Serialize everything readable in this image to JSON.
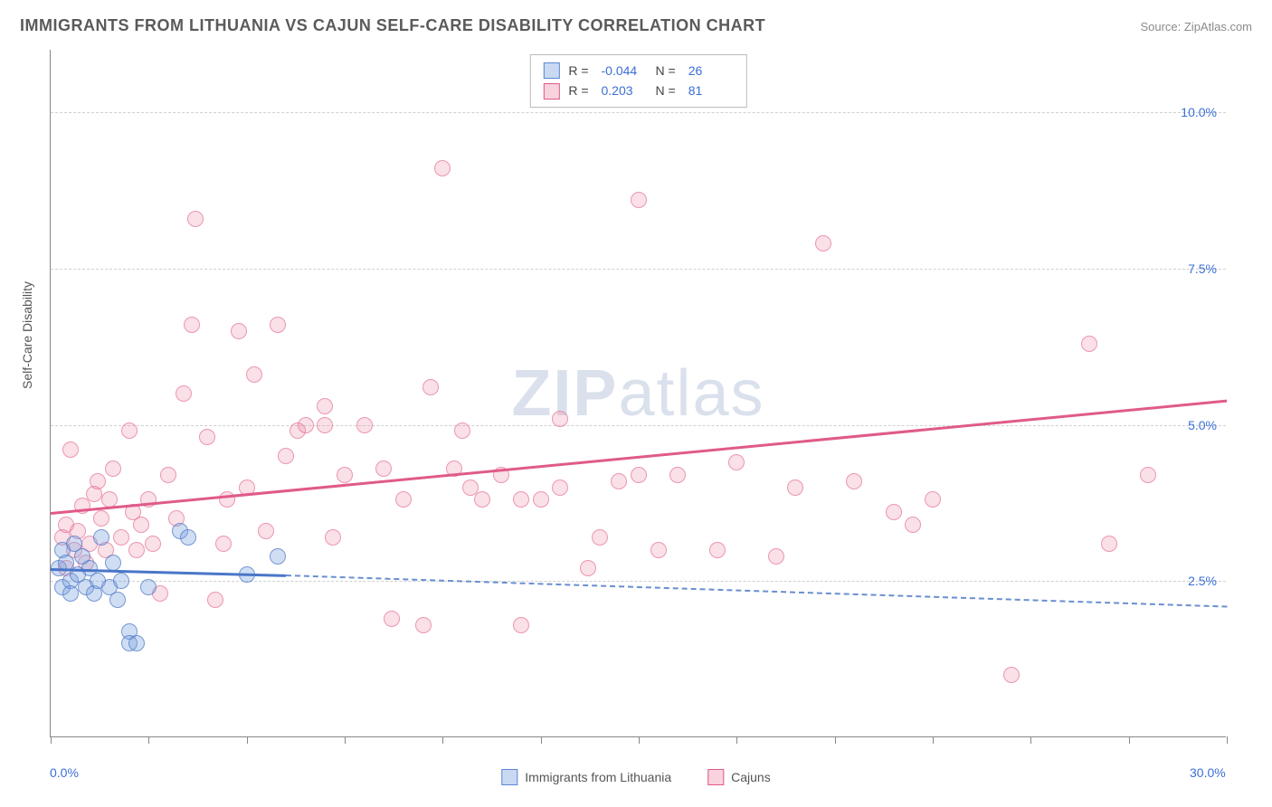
{
  "title": "IMMIGRANTS FROM LITHUANIA VS CAJUN SELF-CARE DISABILITY CORRELATION CHART",
  "source_label": "Source: ZipAtlas.com",
  "y_axis_label": "Self-Care Disability",
  "watermark_zip": "ZIP",
  "watermark_atlas": "atlas",
  "plot": {
    "x_min": 0,
    "x_max": 30,
    "y_min": 0,
    "y_max": 11,
    "x_ticks": [
      0,
      2.5,
      5,
      7.5,
      10,
      12.5,
      15,
      17.5,
      20,
      22.5,
      25,
      27.5,
      30
    ],
    "x_tick_labels_shown": {
      "0": "0.0%",
      "30": "30.0%"
    },
    "y_gridlines": [
      2.5,
      5.0,
      7.5,
      10.0
    ],
    "y_tick_labels": {
      "2.5": "2.5%",
      "5.0": "5.0%",
      "7.5": "7.5%",
      "10.0": "10.0%"
    }
  },
  "series": {
    "blue": {
      "label": "Immigrants from Lithuania",
      "color_fill": "rgba(120,160,220,0.35)",
      "color_stroke": "rgba(80,120,200,0.7)",
      "R": "-0.044",
      "N": "26",
      "trend": {
        "x1": 0,
        "y1": 2.7,
        "x2": 6,
        "y2": 2.6,
        "dashed_x2": 30,
        "dashed_y2": 2.1
      },
      "points": [
        [
          0.2,
          2.7
        ],
        [
          0.3,
          3.0
        ],
        [
          0.3,
          2.4
        ],
        [
          0.4,
          2.8
        ],
        [
          0.5,
          2.5
        ],
        [
          0.5,
          2.3
        ],
        [
          0.6,
          3.1
        ],
        [
          0.7,
          2.6
        ],
        [
          0.8,
          2.9
        ],
        [
          0.9,
          2.4
        ],
        [
          1.0,
          2.7
        ],
        [
          1.1,
          2.3
        ],
        [
          1.2,
          2.5
        ],
        [
          1.3,
          3.2
        ],
        [
          1.5,
          2.4
        ],
        [
          1.6,
          2.8
        ],
        [
          1.7,
          2.2
        ],
        [
          1.8,
          2.5
        ],
        [
          2.0,
          1.7
        ],
        [
          2.0,
          1.5
        ],
        [
          2.2,
          1.5
        ],
        [
          2.5,
          2.4
        ],
        [
          3.3,
          3.3
        ],
        [
          3.5,
          3.2
        ],
        [
          5.0,
          2.6
        ],
        [
          5.8,
          2.9
        ]
      ]
    },
    "pink": {
      "label": "Cajuns",
      "color_fill": "rgba(235,130,160,0.25)",
      "color_stroke": "rgba(225,100,140,0.6)",
      "R": "0.203",
      "N": "81",
      "trend": {
        "x1": 0,
        "y1": 3.6,
        "x2": 30,
        "y2": 5.4
      },
      "points": [
        [
          0.3,
          3.2
        ],
        [
          0.4,
          2.7
        ],
        [
          0.4,
          3.4
        ],
        [
          0.5,
          4.6
        ],
        [
          0.6,
          3.0
        ],
        [
          0.7,
          3.3
        ],
        [
          0.8,
          3.7
        ],
        [
          0.9,
          2.8
        ],
        [
          1.0,
          3.1
        ],
        [
          1.1,
          3.9
        ],
        [
          1.2,
          4.1
        ],
        [
          1.3,
          3.5
        ],
        [
          1.4,
          3.0
        ],
        [
          1.5,
          3.8
        ],
        [
          1.6,
          4.3
        ],
        [
          1.8,
          3.2
        ],
        [
          2.0,
          4.9
        ],
        [
          2.1,
          3.6
        ],
        [
          2.2,
          3.0
        ],
        [
          2.3,
          3.4
        ],
        [
          2.5,
          3.8
        ],
        [
          2.6,
          3.1
        ],
        [
          2.8,
          2.3
        ],
        [
          3.0,
          4.2
        ],
        [
          3.2,
          3.5
        ],
        [
          3.4,
          5.5
        ],
        [
          3.6,
          6.6
        ],
        [
          3.7,
          8.3
        ],
        [
          4.0,
          4.8
        ],
        [
          4.2,
          2.2
        ],
        [
          4.4,
          3.1
        ],
        [
          4.5,
          3.8
        ],
        [
          4.8,
          6.5
        ],
        [
          5.0,
          4.0
        ],
        [
          5.2,
          5.8
        ],
        [
          5.5,
          3.3
        ],
        [
          5.8,
          6.6
        ],
        [
          6.0,
          4.5
        ],
        [
          6.3,
          4.9
        ],
        [
          6.5,
          5.0
        ],
        [
          7.0,
          5.3
        ],
        [
          7.0,
          5.0
        ],
        [
          7.2,
          3.2
        ],
        [
          7.5,
          4.2
        ],
        [
          8.0,
          5.0
        ],
        [
          8.5,
          4.3
        ],
        [
          8.7,
          1.9
        ],
        [
          9.0,
          3.8
        ],
        [
          9.5,
          1.8
        ],
        [
          9.7,
          5.6
        ],
        [
          10.0,
          9.1
        ],
        [
          10.3,
          4.3
        ],
        [
          10.5,
          4.9
        ],
        [
          10.7,
          4.0
        ],
        [
          11.0,
          3.8
        ],
        [
          11.5,
          4.2
        ],
        [
          12.0,
          3.8
        ],
        [
          12.0,
          1.8
        ],
        [
          12.5,
          3.8
        ],
        [
          13.0,
          5.1
        ],
        [
          13.0,
          4.0
        ],
        [
          13.7,
          2.7
        ],
        [
          14.0,
          3.2
        ],
        [
          14.5,
          4.1
        ],
        [
          15.0,
          4.2
        ],
        [
          15.0,
          8.6
        ],
        [
          15.5,
          3.0
        ],
        [
          16.0,
          4.2
        ],
        [
          17.0,
          3.0
        ],
        [
          17.5,
          4.4
        ],
        [
          18.5,
          2.9
        ],
        [
          19.0,
          4.0
        ],
        [
          19.7,
          7.9
        ],
        [
          20.5,
          4.1
        ],
        [
          21.5,
          3.6
        ],
        [
          22.0,
          3.4
        ],
        [
          22.5,
          3.8
        ],
        [
          24.5,
          1.0
        ],
        [
          26.5,
          6.3
        ],
        [
          27.0,
          3.1
        ],
        [
          28.0,
          4.2
        ]
      ]
    }
  },
  "legend_top": {
    "R_label": "R =",
    "N_label": "N ="
  },
  "colors": {
    "axis": "#888888",
    "grid": "#d0d0d0",
    "tick_text": "#3b6fd6",
    "title_text": "#5a5a5a",
    "blue_line": "#4a76c9",
    "pink_line": "#e05a8a",
    "background": "#ffffff"
  }
}
